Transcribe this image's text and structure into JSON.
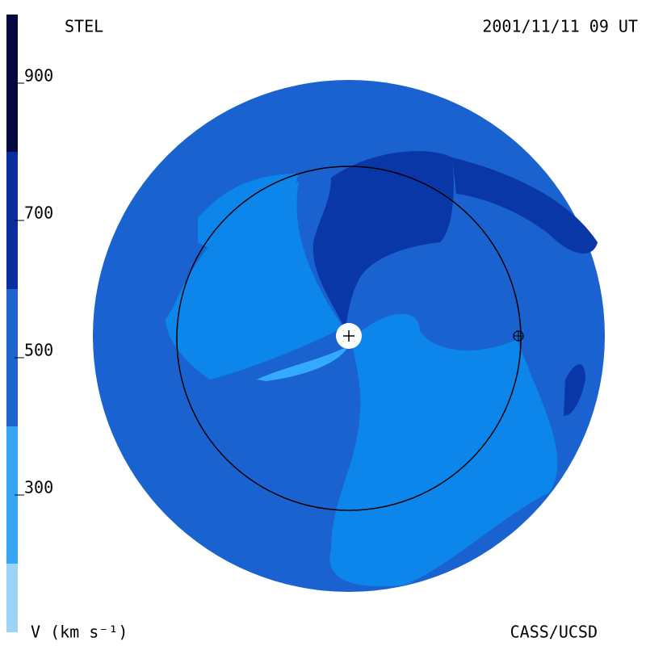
{
  "header": {
    "left": "STEL",
    "right": "2001/11/11 09 UT"
  },
  "colorbar": {
    "label": "V (km s⁻¹)",
    "range": [
      100,
      1000
    ],
    "ticks": [
      300,
      500,
      700,
      900
    ],
    "bands": [
      {
        "from": 100,
        "to": 200,
        "color": "#9dd4f6"
      },
      {
        "from": 200,
        "to": 400,
        "color": "#36a6f4"
      },
      {
        "from": 400,
        "to": 600,
        "color": "#1d64cf"
      },
      {
        "from": 600,
        "to": 800,
        "color": "#0a2c9c"
      },
      {
        "from": 800,
        "to": 1000,
        "color": "#040a40"
      }
    ]
  },
  "footer": {
    "right": "CASS/UCSD"
  }
}
